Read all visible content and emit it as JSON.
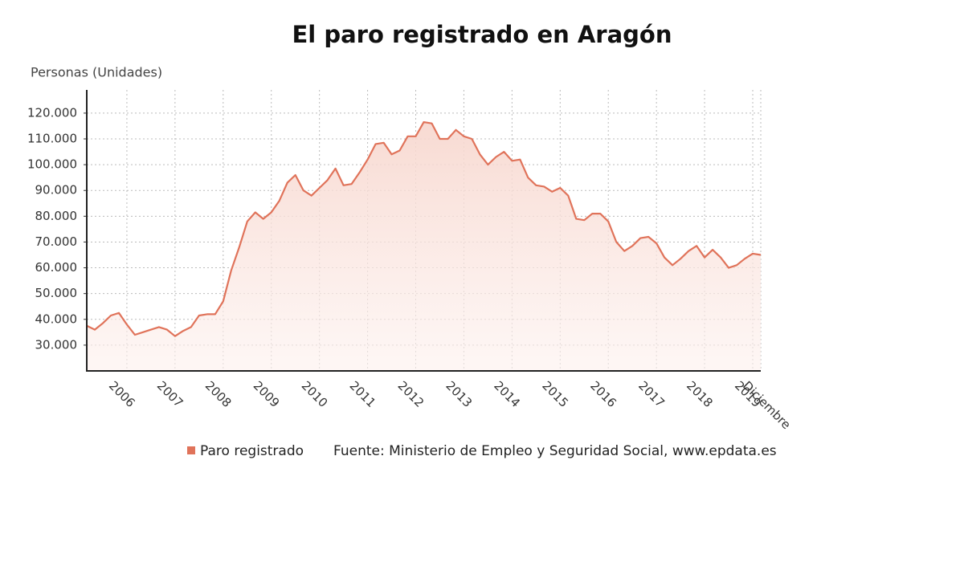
{
  "chart_data": {
    "type": "line",
    "title": "El paro registrado en Aragón",
    "y_label": "Personas (Unidades)",
    "source": "Fuente: Ministerio de Empleo y Seguridad Social, www.epdata.es",
    "categories": [
      null,
      null,
      null,
      null,
      null,
      "2006",
      null,
      null,
      null,
      null,
      null,
      "2007",
      null,
      null,
      null,
      null,
      null,
      "2008",
      null,
      null,
      null,
      null,
      null,
      "2009",
      null,
      null,
      null,
      null,
      null,
      "2010",
      null,
      null,
      null,
      null,
      null,
      "2011",
      null,
      null,
      null,
      null,
      null,
      "2012",
      null,
      null,
      null,
      null,
      null,
      "2013",
      null,
      null,
      null,
      null,
      null,
      "2014",
      null,
      null,
      null,
      null,
      null,
      "2015",
      null,
      null,
      null,
      null,
      null,
      "2016",
      null,
      null,
      null,
      null,
      null,
      "2017",
      null,
      null,
      null,
      null,
      null,
      "2018",
      null,
      null,
      null,
      null,
      null,
      "2019",
      "Diciembre"
    ],
    "series": [
      {
        "name": "Paro registrado",
        "color": "#e0735a",
        "values": [
          37500,
          36000,
          38500,
          41500,
          42500,
          38000,
          34000,
          35000,
          36000,
          37000,
          36000,
          33500,
          35500,
          37000,
          41500,
          42000,
          42000,
          47000,
          59000,
          68000,
          78000,
          81500,
          79000,
          81500,
          86000,
          93000,
          96000,
          90000,
          88000,
          91000,
          94000,
          98500,
          92000,
          92500,
          97000,
          102000,
          108000,
          108500,
          104000,
          105500,
          111000,
          111000,
          116500,
          116000,
          110000,
          110000,
          113500,
          111000,
          110000,
          104000,
          100000,
          103000,
          105000,
          101500,
          102000,
          95000,
          92000,
          91500,
          89500,
          91000,
          88000,
          79000,
          78500,
          81000,
          81000,
          78000,
          70000,
          66500,
          68500,
          71500,
          72000,
          69500,
          64000,
          61000,
          63500,
          66500,
          68500,
          64000,
          67000,
          64000,
          60000,
          61000,
          63500,
          65500,
          65000
        ]
      }
    ],
    "ylim": [
      20000,
      129000
    ],
    "yticks": [
      {
        "value": 30000,
        "label": "30.000"
      },
      {
        "value": 40000,
        "label": "40.000"
      },
      {
        "value": 50000,
        "label": "50.000"
      },
      {
        "value": 60000,
        "label": "60.000"
      },
      {
        "value": 70000,
        "label": "70.000"
      },
      {
        "value": 80000,
        "label": "80.000"
      },
      {
        "value": 90000,
        "label": "90.000"
      },
      {
        "value": 100000,
        "label": "100.000"
      },
      {
        "value": 110000,
        "label": "110.000"
      },
      {
        "value": 120000,
        "label": "120.000"
      }
    ],
    "grid": true,
    "legend": "bottom"
  }
}
